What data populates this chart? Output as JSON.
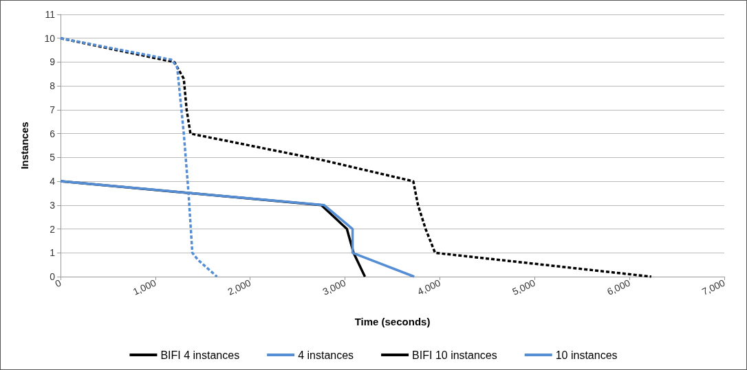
{
  "chart_data": {
    "type": "line",
    "xlabel": "Time (seconds)",
    "ylabel": "Instances",
    "xlim": [
      0,
      7000
    ],
    "xticks": [
      {
        "value": 0,
        "label": "0"
      },
      {
        "value": 1000,
        "label": "1,000"
      },
      {
        "value": 2000,
        "label": "2,000"
      },
      {
        "value": 3000,
        "label": "3,000"
      },
      {
        "value": 4000,
        "label": "4,000"
      },
      {
        "value": 5000,
        "label": "5,000"
      },
      {
        "value": 6000,
        "label": "6,000"
      },
      {
        "value": 7000,
        "label": "7,000"
      }
    ],
    "ylim": [
      0,
      11
    ],
    "yticks": [
      0,
      1,
      2,
      3,
      4,
      5,
      6,
      7,
      8,
      9,
      10,
      11
    ],
    "grid": "y",
    "legend": "bottom",
    "marker": "none",
    "series": [
      {
        "name": "BIFI 4 instances",
        "color": "#000000",
        "line_style": "solid",
        "x": [
          0,
          2750,
          3020,
          3090,
          3210
        ],
        "values": [
          4,
          3,
          2,
          1,
          0
        ]
      },
      {
        "name": "4 instances",
        "color": "#558ed5",
        "line_style": "solid",
        "x": [
          0,
          2780,
          3080,
          3080,
          3730
        ],
        "values": [
          4,
          3,
          2,
          1,
          0
        ]
      },
      {
        "name": "BIFI 10 instances",
        "color": "#000000",
        "line_style": "dashed",
        "x": [
          0,
          1200,
          1300,
          1330,
          1370,
          2750,
          3720,
          3770,
          3850,
          3950,
          6230
        ],
        "values": [
          10,
          9,
          8.3,
          7,
          6,
          4.9,
          4,
          3,
          2,
          1,
          0
        ]
      },
      {
        "name": "10 instances",
        "color": "#558ed5",
        "line_style": "dashed",
        "x": [
          0,
          1170,
          1230,
          1300,
          1350,
          1390,
          1450,
          1650
        ],
        "values": [
          10,
          9.1,
          8.8,
          6,
          3.5,
          1,
          0.7,
          0
        ]
      }
    ]
  }
}
